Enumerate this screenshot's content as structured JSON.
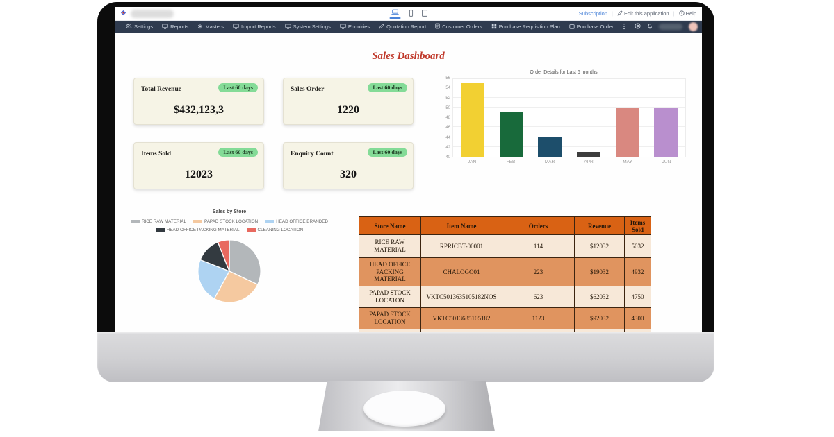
{
  "topbar": {
    "links": {
      "subscription": "Subscription",
      "edit": "Edit this application",
      "help": "Help"
    },
    "device_icons": [
      "laptop",
      "phone",
      "tablet"
    ],
    "active_device": "laptop"
  },
  "nav": {
    "items": [
      {
        "label": "Settings",
        "icon": "users-icon"
      },
      {
        "label": "Reports",
        "icon": "monitor-icon"
      },
      {
        "label": "Masters",
        "icon": "asterisk-icon"
      },
      {
        "label": "Import Reports",
        "icon": "monitor-icon"
      },
      {
        "label": "System Settings",
        "icon": "monitor-icon"
      },
      {
        "label": "Enquiries",
        "icon": "monitor-icon"
      },
      {
        "label": "Quotation Report",
        "icon": "pencil-icon"
      },
      {
        "label": "Customer Orders",
        "icon": "document-icon"
      },
      {
        "label": "Purchase Requisition Plan",
        "icon": "grid-icon"
      },
      {
        "label": "Purchase Order",
        "icon": "calendar-icon"
      }
    ],
    "right_icons": [
      "headset-icon",
      "bell-icon"
    ]
  },
  "dashboard": {
    "title": "Sales Dashboard"
  },
  "kpis": [
    {
      "label": "Total Revenue",
      "badge": "Last 60 days",
      "value": "$432,123,3"
    },
    {
      "label": "Sales Order",
      "badge": "Last 60 days",
      "value": "1220"
    },
    {
      "label": "Items Sold",
      "badge": "Last 60 days",
      "value": "12023"
    },
    {
      "label": "Enquiry Count",
      "badge": "Last 60 days",
      "value": "320"
    }
  ],
  "chart_data": [
    {
      "type": "bar",
      "title": "Order Details for Last 6 months",
      "categories": [
        "JAN",
        "FEB",
        "MAR",
        "APR",
        "MAY",
        "JUN"
      ],
      "values": [
        55,
        49,
        44,
        41,
        50,
        50
      ],
      "colors": [
        "#f2d032",
        "#186a3b",
        "#1d4e6b",
        "#3d3d3d",
        "#d98880",
        "#b98fce"
      ],
      "xlabel": "",
      "ylabel": "",
      "ylim": [
        40,
        56
      ],
      "ytick_step": 2,
      "grid": true,
      "legend_position": "none"
    },
    {
      "type": "pie",
      "title": "Sales by Store",
      "labels": [
        "RICE RAW MATERIAL",
        "PAPAD STOCK LOCATION",
        "HEAD OFFICE BRANDED",
        "HEAD OFFICE PACKING MATERIAL",
        "CLEANING LOCATION"
      ],
      "values": [
        32,
        26,
        23,
        13,
        6
      ],
      "colors": [
        "#b3b7ba",
        "#f5c9a0",
        "#aed3f2",
        "#333a40",
        "#e8695f"
      ],
      "legend_position": "top"
    }
  ],
  "table": {
    "headers": [
      "Store Name",
      "Item Name",
      "Orders",
      "Revenue",
      "Items Sold"
    ],
    "rows": [
      [
        "RICE RAW MATERIAL",
        "RPRICBT-00001",
        "114",
        "$12032",
        "5032"
      ],
      [
        "HEAD OFFICE PACKING MATERIAL",
        "CHALOGO01",
        "223",
        "$19032",
        "4932"
      ],
      [
        "PAPAD STOCK LOCATON",
        "VKTC5013635105182NOS",
        "623",
        "$62032",
        "4750"
      ],
      [
        "PAPAD STOCK LOCATION",
        "VKTC5013635105182",
        "1123",
        "$92032",
        "4300"
      ]
    ]
  },
  "colors": {
    "nav_bg": "#2f3b4f",
    "title_red": "#c0392b",
    "badge_green": "#84db97",
    "card_bg": "#f6f4e6",
    "table_header": "#d96214",
    "row_light": "#f7e8d8",
    "row_orange": "#e0945f",
    "link_blue": "#4a83d8"
  }
}
